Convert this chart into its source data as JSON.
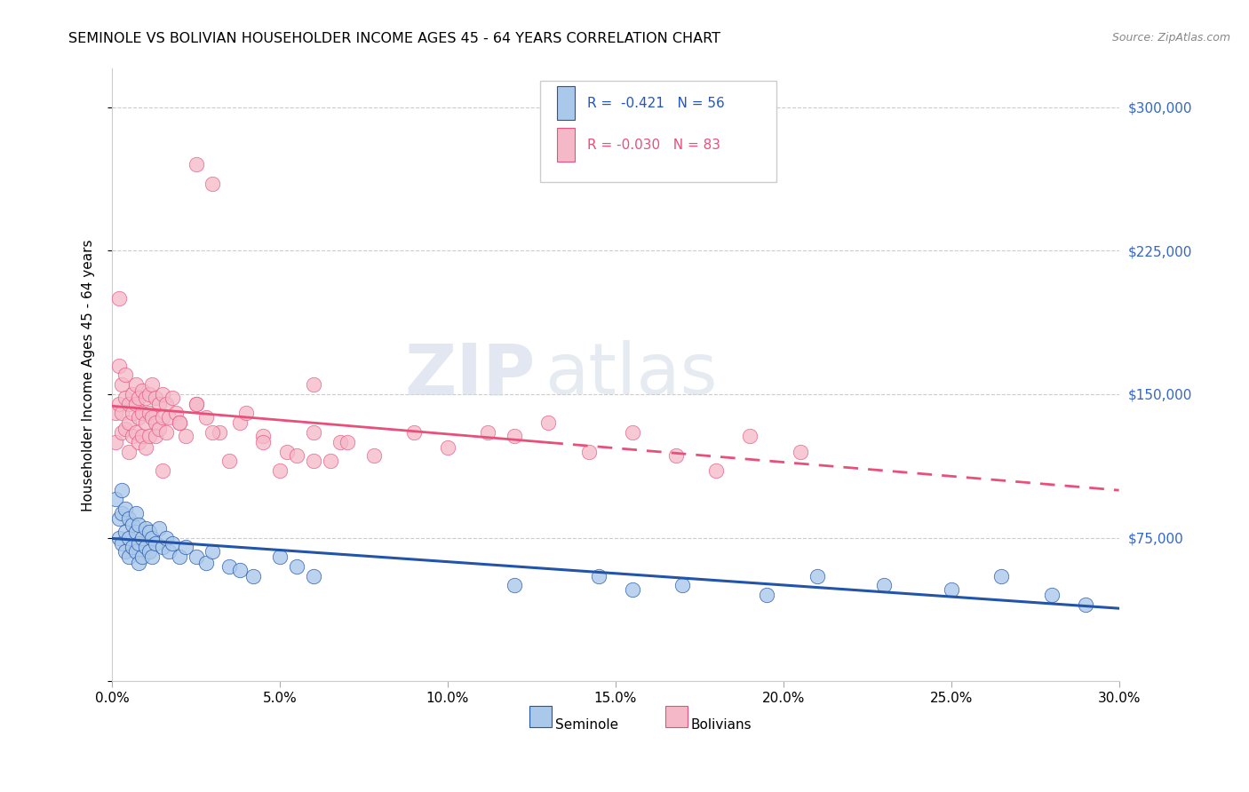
{
  "title": "SEMINOLE VS BOLIVIAN HOUSEHOLDER INCOME AGES 45 - 64 YEARS CORRELATION CHART",
  "source": "Source: ZipAtlas.com",
  "ylabel": "Householder Income Ages 45 - 64 years",
  "xmin": 0.0,
  "xmax": 0.3,
  "ymin": 0,
  "ymax": 320000,
  "yticks": [
    0,
    75000,
    150000,
    225000,
    300000
  ],
  "ytick_labels": [
    "",
    "$75,000",
    "$150,000",
    "$225,000",
    "$300,000"
  ],
  "xtick_labels": [
    "0.0%",
    "",
    "",
    "",
    "",
    "",
    "",
    "",
    "5.0%",
    "",
    "",
    "",
    "",
    "",
    "",
    "",
    "10.0%",
    "",
    "",
    "",
    "",
    "",
    "",
    "",
    "15.0%",
    "",
    "",
    "",
    "",
    "",
    "",
    "",
    "20.0%",
    "",
    "",
    "",
    "",
    "",
    "",
    "",
    "25.0%",
    "",
    "",
    "",
    "",
    "",
    "",
    "",
    "30.0%"
  ],
  "seminole_color": "#aac8ea",
  "bolivian_color": "#f5b8c8",
  "regression_seminole_color": "#2255aa",
  "regression_bolivian_color": "#e8507a",
  "background_color": "#ffffff",
  "watermark_zip": "ZIP",
  "watermark_atlas": "atlas",
  "seminole_x": [
    0.001,
    0.002,
    0.002,
    0.003,
    0.003,
    0.003,
    0.004,
    0.004,
    0.004,
    0.005,
    0.005,
    0.005,
    0.006,
    0.006,
    0.007,
    0.007,
    0.007,
    0.008,
    0.008,
    0.008,
    0.009,
    0.009,
    0.01,
    0.01,
    0.011,
    0.011,
    0.012,
    0.012,
    0.013,
    0.014,
    0.015,
    0.016,
    0.017,
    0.018,
    0.02,
    0.022,
    0.025,
    0.028,
    0.03,
    0.035,
    0.038,
    0.042,
    0.05,
    0.055,
    0.06,
    0.12,
    0.145,
    0.155,
    0.17,
    0.195,
    0.21,
    0.23,
    0.25,
    0.265,
    0.28,
    0.29
  ],
  "seminole_y": [
    95000,
    85000,
    75000,
    100000,
    88000,
    72000,
    90000,
    78000,
    68000,
    85000,
    75000,
    65000,
    82000,
    70000,
    88000,
    78000,
    68000,
    82000,
    72000,
    62000,
    75000,
    65000,
    80000,
    70000,
    78000,
    68000,
    75000,
    65000,
    72000,
    80000,
    70000,
    75000,
    68000,
    72000,
    65000,
    70000,
    65000,
    62000,
    68000,
    60000,
    58000,
    55000,
    65000,
    60000,
    55000,
    50000,
    55000,
    48000,
    50000,
    45000,
    55000,
    50000,
    48000,
    55000,
    45000,
    40000
  ],
  "bolivian_x": [
    0.001,
    0.001,
    0.002,
    0.002,
    0.002,
    0.003,
    0.003,
    0.003,
    0.004,
    0.004,
    0.004,
    0.005,
    0.005,
    0.005,
    0.006,
    0.006,
    0.006,
    0.007,
    0.007,
    0.007,
    0.008,
    0.008,
    0.008,
    0.009,
    0.009,
    0.009,
    0.01,
    0.01,
    0.01,
    0.011,
    0.011,
    0.011,
    0.012,
    0.012,
    0.013,
    0.013,
    0.013,
    0.014,
    0.014,
    0.015,
    0.015,
    0.016,
    0.016,
    0.017,
    0.018,
    0.019,
    0.02,
    0.022,
    0.025,
    0.028,
    0.032,
    0.038,
    0.045,
    0.052,
    0.06,
    0.068,
    0.078,
    0.09,
    0.1,
    0.112,
    0.12,
    0.13,
    0.142,
    0.155,
    0.168,
    0.18,
    0.19,
    0.205,
    0.015,
    0.02,
    0.025,
    0.03,
    0.035,
    0.04,
    0.045,
    0.05,
    0.055,
    0.06,
    0.065,
    0.07,
    0.025,
    0.03,
    0.06
  ],
  "bolivian_y": [
    140000,
    125000,
    200000,
    165000,
    145000,
    155000,
    140000,
    130000,
    160000,
    148000,
    132000,
    145000,
    135000,
    120000,
    150000,
    140000,
    128000,
    155000,
    145000,
    130000,
    148000,
    138000,
    125000,
    152000,
    140000,
    128000,
    148000,
    135000,
    122000,
    150000,
    140000,
    128000,
    155000,
    138000,
    148000,
    135000,
    128000,
    145000,
    132000,
    150000,
    138000,
    145000,
    130000,
    138000,
    148000,
    140000,
    135000,
    128000,
    145000,
    138000,
    130000,
    135000,
    128000,
    120000,
    115000,
    125000,
    118000,
    130000,
    122000,
    130000,
    128000,
    135000,
    120000,
    130000,
    118000,
    110000,
    128000,
    120000,
    110000,
    135000,
    145000,
    130000,
    115000,
    140000,
    125000,
    110000,
    118000,
    130000,
    115000,
    125000,
    270000,
    260000,
    155000
  ]
}
